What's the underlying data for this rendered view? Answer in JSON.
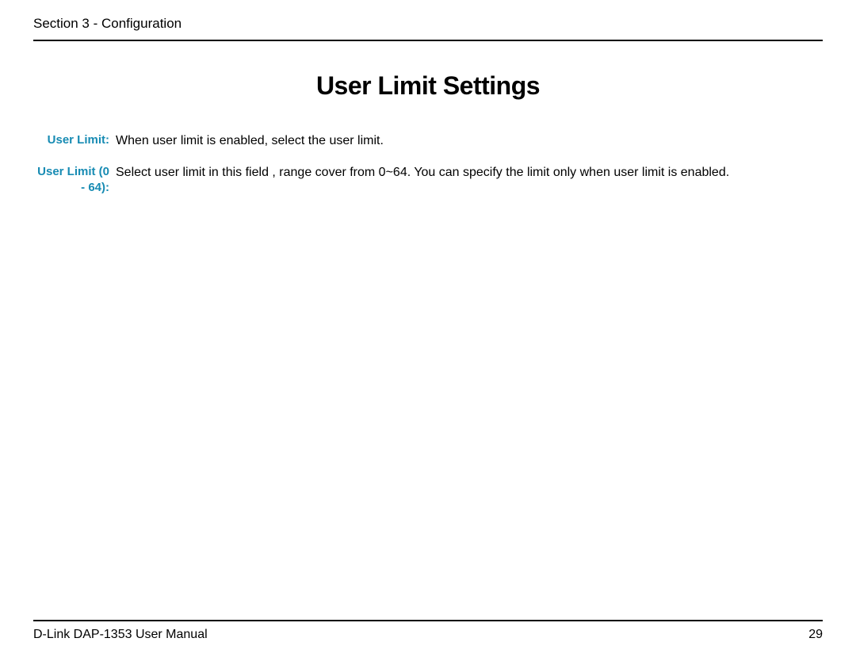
{
  "header": {
    "section_label": "Section 3 - Configuration"
  },
  "title": "User Limit Settings",
  "definitions": [
    {
      "label": "User Limit:",
      "text": "When user limit is enabled, select the user limit."
    },
    {
      "label": "User Limit (0 - 64):",
      "text": "Select user limit in this field , range cover from 0~64. You can specify the limit only when user limit is enabled."
    }
  ],
  "footer": {
    "manual_label": "D-Link DAP-1353 User Manual",
    "page_number": "29"
  },
  "colors": {
    "label_color": "#178bb3",
    "text_color": "#000000",
    "rule_color": "#000000",
    "background": "#ffffff"
  },
  "typography": {
    "title_fontsize": 32,
    "body_fontsize": 16,
    "label_fontsize": 15,
    "header_fontsize": 17
  }
}
